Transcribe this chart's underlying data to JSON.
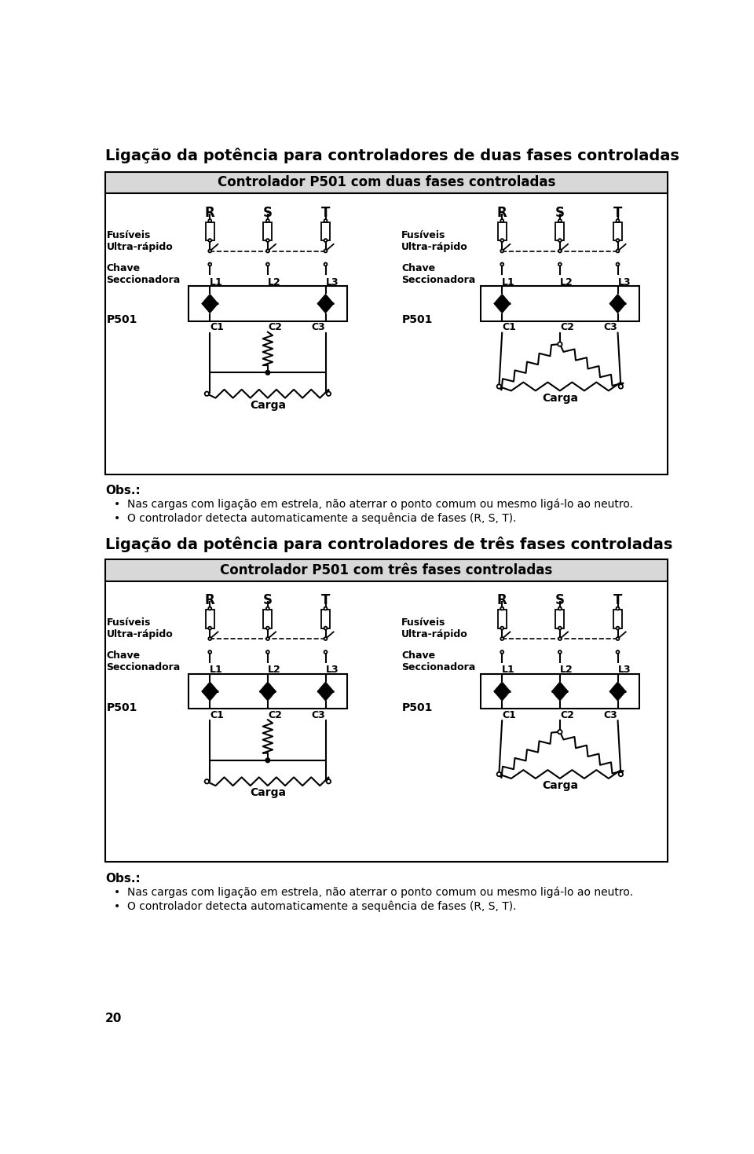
{
  "title1": "Ligação da potência para controladores de duas fases controladas",
  "title2": "Ligação da potência para controladores de três fases controladas",
  "box1_title": "Controlador P501 com duas fases controladas",
  "box2_title": "Controlador P501 com três fases controladas",
  "obs_label": "Obs.:",
  "bullet1": "Nas cargas com ligação em estrela, não aterrar o ponto comum ou mesmo ligá-lo ao neutro.",
  "bullet2": "O controlador detecta automaticamente a sequência de fases (R, S, T).",
  "page_number": "20",
  "bg_color": "#ffffff",
  "box_header_bg": "#d8d8d8",
  "box_body_bg": "#ffffff",
  "line_color": "#000000"
}
